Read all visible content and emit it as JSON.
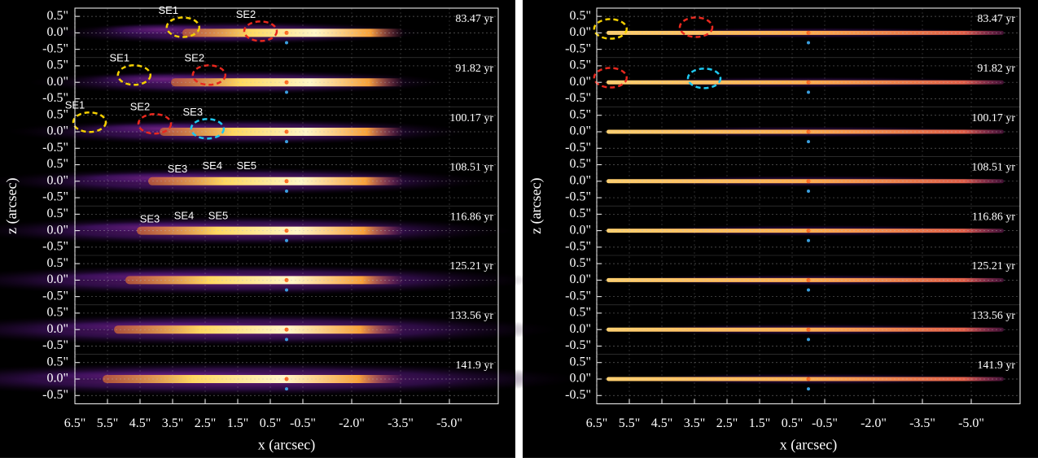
{
  "chart_data": [
    {
      "type": "image-stack",
      "xlabel": "x (arcsec)",
      "ylabel": "z (arcsec)",
      "xlim": [
        6.5,
        -6.5
      ],
      "xticks": [
        {
          "value": 6.5,
          "label": "6.5\""
        },
        {
          "value": 5.5,
          "label": "5.5\""
        },
        {
          "value": 4.5,
          "label": "4.5\""
        },
        {
          "value": 3.5,
          "label": "3.5\""
        },
        {
          "value": 2.5,
          "label": "2.5\""
        },
        {
          "value": 1.5,
          "label": "1.5\""
        },
        {
          "value": 0.5,
          "label": "0.5\""
        },
        {
          "value": -0.5,
          "label": "-0.5\""
        },
        {
          "value": -2.0,
          "label": "-2.0\""
        },
        {
          "value": -3.5,
          "label": "-3.5\""
        },
        {
          "value": -5.0,
          "label": "-5.0\""
        }
      ],
      "ylim": [
        -0.75,
        0.75
      ],
      "yticks": [
        {
          "value": 0.5,
          "label": "0.5\""
        },
        {
          "value": 0,
          "label": "0.0\""
        },
        {
          "value": -0.5,
          "label": "-0.5\""
        }
      ],
      "grid": true,
      "panels": [
        {
          "time": "83.47 yr",
          "annotations": [
            {
              "text": "SE1",
              "color": "#f5d000",
              "x": 3.18,
              "z": 0.17
            },
            {
              "text": "SE2",
              "color": "#e8281e",
              "x": 0.8,
              "z": 0.05
            }
          ]
        },
        {
          "time": "91.82 yr",
          "annotations": [
            {
              "text": "SE1",
              "color": "#f5d000",
              "x": 4.68,
              "z": 0.22
            },
            {
              "text": "SE2",
              "color": "#e8281e",
              "x": 2.38,
              "z": 0.22
            }
          ]
        },
        {
          "time": "100.17 yr",
          "annotations": [
            {
              "text": "SE1",
              "color": "#f5d000",
              "x": 6.05,
              "z": 0.29
            },
            {
              "text": "SE2",
              "color": "#e8281e",
              "x": 4.05,
              "z": 0.24
            },
            {
              "text": "SE3",
              "color": "#1ec8f0",
              "x": 2.43,
              "z": 0.09
            }
          ]
        },
        {
          "time": "108.51 yr",
          "annotations": [
            {
              "text": "SE3",
              "x": 3.35,
              "z": 0.35
            },
            {
              "text": "SE4",
              "x": 2.28,
              "z": 0.45
            },
            {
              "text": "SE5",
              "x": 1.23,
              "z": 0.45
            }
          ]
        },
        {
          "time": "116.86 yr",
          "annotations": [
            {
              "text": "SE3",
              "x": 4.2,
              "z": 0.33
            },
            {
              "text": "SE4",
              "x": 3.15,
              "z": 0.43
            },
            {
              "text": "SE5",
              "x": 2.1,
              "z": 0.43
            }
          ]
        },
        {
          "time": "125.21 yr"
        },
        {
          "time": "133.56 yr"
        },
        {
          "time": "141.9 yr"
        }
      ]
    },
    {
      "type": "image-stack",
      "xlabel": "x (arcsec)",
      "ylabel": "z (arcsec)",
      "xlim": [
        6.5,
        -6.5
      ],
      "xticks": [
        {
          "value": 6.5,
          "label": "6.5\""
        },
        {
          "value": 5.5,
          "label": "5.5\""
        },
        {
          "value": 4.5,
          "label": "4.5\""
        },
        {
          "value": 3.5,
          "label": "3.5\""
        },
        {
          "value": 2.5,
          "label": "2.5\""
        },
        {
          "value": 1.5,
          "label": "1.5\""
        },
        {
          "value": 0.5,
          "label": "0.5\""
        },
        {
          "value": -0.5,
          "label": "-0.5\""
        },
        {
          "value": -2.0,
          "label": "-2.0\""
        },
        {
          "value": -3.5,
          "label": "-3.5\""
        },
        {
          "value": -5.0,
          "label": "-5.0\""
        }
      ],
      "ylim": [
        -0.75,
        0.75
      ],
      "yticks": [
        {
          "value": 0.5,
          "label": "0.5\""
        },
        {
          "value": 0,
          "label": "0.0\""
        },
        {
          "value": -0.5,
          "label": "-0.5\""
        }
      ],
      "grid": true,
      "panels": [
        {
          "time": "83.47 yr",
          "annotations": [
            {
              "color": "#f5d000",
              "x": 6.08,
              "z": 0.12
            },
            {
              "color": "#e8281e",
              "x": 3.45,
              "z": 0.17
            }
          ]
        },
        {
          "time": "91.82 yr",
          "annotations": [
            {
              "color": "#e8281e",
              "x": 6.08,
              "z": 0.14
            },
            {
              "color": "#1ec8f0",
              "x": 3.2,
              "z": 0.12
            }
          ]
        },
        {
          "time": "100.17 yr"
        },
        {
          "time": "108.51 yr"
        },
        {
          "time": "116.86 yr"
        },
        {
          "time": "125.21 yr"
        },
        {
          "time": "133.56 yr"
        },
        {
          "time": "141.9 yr"
        }
      ]
    }
  ]
}
